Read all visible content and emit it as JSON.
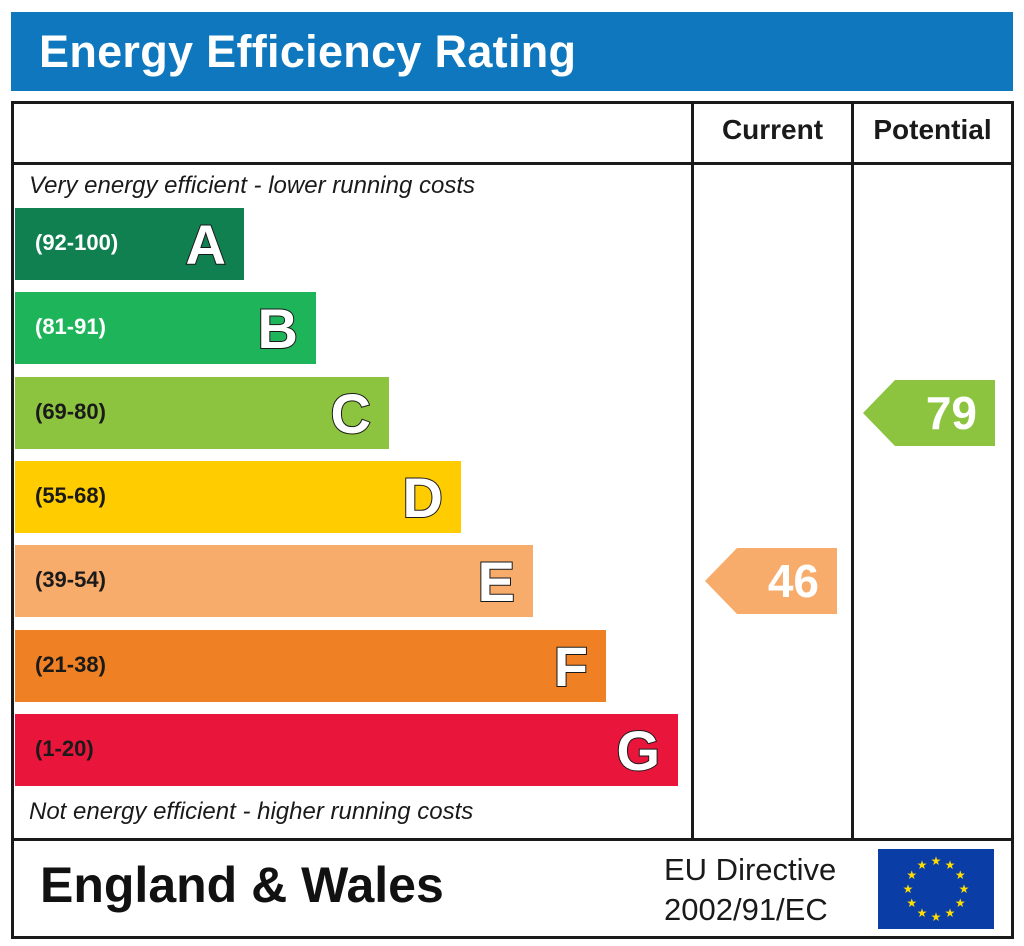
{
  "title": "Energy Efficiency Rating",
  "columns": {
    "current": "Current",
    "potential": "Potential"
  },
  "top_caption": "Very energy efficient - lower running costs",
  "bottom_caption": "Not energy efficient - higher running costs",
  "footer": {
    "region": "England & Wales",
    "directive_line1": "EU Directive",
    "directive_line2": "2002/91/EC",
    "flag_icon": "eu-flag-icon"
  },
  "chart_data": {
    "type": "bar",
    "bands": [
      {
        "letter": "A",
        "range": "(92-100)",
        "color": "#108050",
        "text_color": "#ffffff"
      },
      {
        "letter": "B",
        "range": "(81-91)",
        "color": "#1eb45a",
        "text_color": "#ffffff"
      },
      {
        "letter": "C",
        "range": "(69-80)",
        "color": "#8cc43f",
        "text_color": "#1a1a1a"
      },
      {
        "letter": "D",
        "range": "(55-68)",
        "color": "#ffcc00",
        "text_color": "#1a1a1a"
      },
      {
        "letter": "E",
        "range": "(39-54)",
        "color": "#f7ac6b",
        "text_color": "#1a1a1a"
      },
      {
        "letter": "F",
        "range": "(21-38)",
        "color": "#ef8023",
        "text_color": "#1a1a1a"
      },
      {
        "letter": "G",
        "range": "(1-20)",
        "color": "#e9153b",
        "text_color": "#1a1a1a"
      }
    ],
    "current": {
      "value": 46,
      "band": "E",
      "color": "#f7ac6b"
    },
    "potential": {
      "value": 79,
      "band": "C",
      "color": "#8cc43f"
    }
  }
}
